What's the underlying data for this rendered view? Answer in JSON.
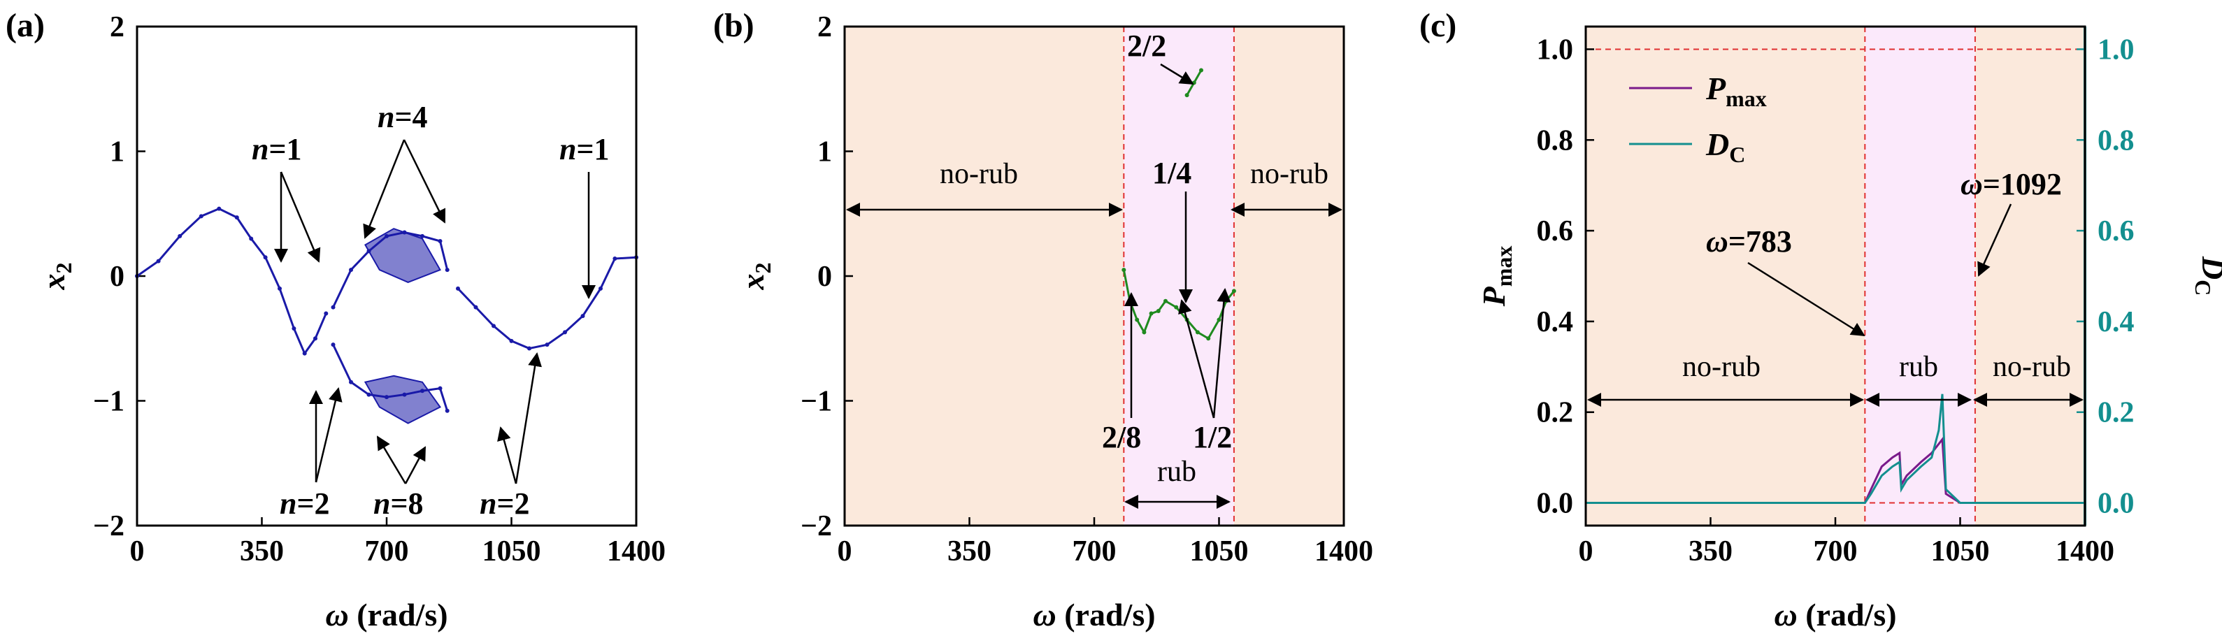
{
  "chart_data": [
    {
      "panel": "(a)",
      "type": "scatter",
      "xlabel_symbol": "ω",
      "xlabel_unit": " (rad/s)",
      "ylabel_base": "x",
      "ylabel_sub": "2",
      "xticks": [
        "0",
        "350",
        "700",
        "1050",
        "1400"
      ],
      "yticks": [
        "2",
        "1",
        "0",
        "−1",
        "−2"
      ],
      "xlim": [
        0,
        1400
      ],
      "ylim": [
        -2,
        2
      ],
      "color": "#1a1aa8",
      "annotations": [
        {
          "var": "n",
          "val": "=1"
        },
        {
          "var": "n",
          "val": "=4"
        },
        {
          "var": "n",
          "val": "=1"
        },
        {
          "var": "n",
          "val": "=2"
        },
        {
          "var": "n",
          "val": "=8"
        },
        {
          "var": "n",
          "val": "=2"
        }
      ],
      "series": [
        {
          "values_x": [
            0,
            60,
            120,
            180,
            230,
            280,
            320,
            360,
            400,
            440,
            470,
            500,
            530
          ],
          "values_y": [
            0.0,
            0.12,
            0.32,
            0.48,
            0.54,
            0.47,
            0.3,
            0.15,
            -0.1,
            -0.42,
            -0.62,
            -0.5,
            -0.3
          ]
        },
        {
          "values_x": [
            550,
            600,
            650,
            700,
            750,
            800,
            850,
            870
          ],
          "values_y": [
            -0.55,
            -0.85,
            -0.95,
            -0.97,
            -0.95,
            -0.92,
            -0.9,
            -1.08
          ]
        },
        {
          "values_x": [
            550,
            600,
            650,
            700,
            750,
            800,
            850,
            870
          ],
          "values_y": [
            -0.25,
            0.05,
            0.2,
            0.32,
            0.35,
            0.32,
            0.28,
            0.05
          ]
        },
        {
          "values_x": [
            900,
            950,
            1000,
            1050,
            1100,
            1150,
            1200,
            1250,
            1300,
            1340,
            1400
          ],
          "values_y": [
            -0.1,
            -0.25,
            -0.4,
            -0.52,
            -0.58,
            -0.55,
            -0.45,
            -0.32,
            -0.1,
            0.14,
            0.15
          ]
        }
      ]
    },
    {
      "panel": "(b)",
      "type": "scatter",
      "xlabel_symbol": "ω",
      "xlabel_unit": " (rad/s)",
      "ylabel_base": "x",
      "ylabel_sub": "2",
      "xticks": [
        "0",
        "350",
        "700",
        "1050",
        "1400"
      ],
      "yticks": [
        "2",
        "1",
        "0",
        "−1",
        "−2"
      ],
      "xlim": [
        0,
        1400
      ],
      "ylim": [
        -2,
        2
      ],
      "color": "#1f8a1f",
      "rub_range": [
        783,
        1092
      ],
      "regions": [
        "no-rub",
        "no-rub",
        "rub"
      ],
      "annotations": [
        "2/2",
        "1/4",
        "2/8",
        "1/2"
      ],
      "series": [
        {
          "values_x": [
            783,
            800,
            820,
            840,
            860,
            880,
            900,
            930,
            960,
            990,
            1020,
            1050,
            1070,
            1092
          ],
          "values_y": [
            0.05,
            -0.2,
            -0.35,
            -0.45,
            -0.3,
            -0.28,
            -0.2,
            -0.25,
            -0.35,
            -0.45,
            -0.5,
            -0.35,
            -0.2,
            -0.12
          ]
        },
        {
          "values_x": [
            960,
            980,
            1000
          ],
          "values_y": [
            1.45,
            1.55,
            1.65
          ]
        }
      ]
    },
    {
      "panel": "(c)",
      "type": "line",
      "xlabel_symbol": "ω",
      "xlabel_unit": " (rad/s)",
      "ylabel_left_base": "P",
      "ylabel_left_sub": "max",
      "ylabel_right_base": "D",
      "ylabel_right_sub": "C",
      "xticks": [
        "0",
        "350",
        "700",
        "1050",
        "1400"
      ],
      "yticks": [
        "1.0",
        "0.8",
        "0.6",
        "0.4",
        "0.2",
        "0.0"
      ],
      "xlim": [
        0,
        1400
      ],
      "ylim": [
        -0.05,
        1.05
      ],
      "rub_range": [
        783,
        1092
      ],
      "regions": [
        "no-rub",
        "rub",
        "no-rub"
      ],
      "annotations": [
        {
          "var": "ω",
          "val": "=783"
        },
        {
          "var": "ω",
          "val": "=1092"
        }
      ],
      "legend": [
        {
          "base": "P",
          "sub": "max",
          "color": "#7a1a8a"
        },
        {
          "base": "D",
          "sub": "C",
          "color": "#138f8f"
        }
      ],
      "series": [
        {
          "name": "Pmax",
          "color": "#7a1a8a",
          "x": [
            0,
            783,
            800,
            830,
            860,
            880,
            885,
            900,
            940,
            970,
            1000,
            1010,
            1050,
            1092,
            1400
          ],
          "y": [
            0,
            0,
            0.03,
            0.08,
            0.1,
            0.11,
            0.04,
            0.06,
            0.09,
            0.11,
            0.14,
            0.02,
            0.0,
            0,
            0
          ]
        },
        {
          "name": "DC",
          "color": "#138f8f",
          "x": [
            0,
            783,
            800,
            830,
            860,
            880,
            885,
            900,
            940,
            970,
            990,
            1000,
            1010,
            1050,
            1092,
            1400
          ],
          "y": [
            0,
            0,
            0.02,
            0.06,
            0.08,
            0.09,
            0.03,
            0.05,
            0.08,
            0.1,
            0.16,
            0.24,
            0.03,
            0.0,
            0,
            0
          ]
        }
      ]
    }
  ]
}
